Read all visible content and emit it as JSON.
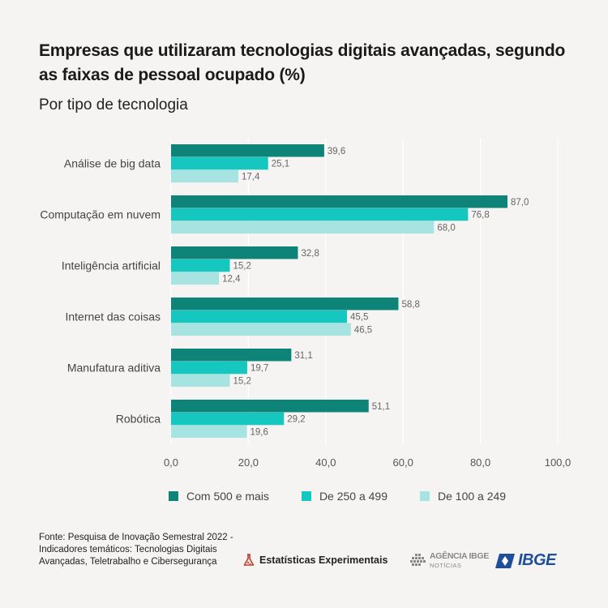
{
  "title": "Empresas que utilizaram tecnologias digitais avançadas, segundo as faixas de pessoal ocupado (%)",
  "subtitle": "Por tipo de tecnologia",
  "colors": {
    "series_1": "#0e8378",
    "series_2": "#16c7bf",
    "series_3": "#a7e3e1",
    "grid": "#ffffff",
    "background": "#f5f4f2"
  },
  "chart_data": {
    "type": "bar",
    "orientation": "horizontal",
    "categories": [
      "Análise de big data",
      "Computação em nuvem",
      "Inteligência artificial",
      "Internet das coisas",
      "Manufatura aditiva",
      "Robótica"
    ],
    "series": [
      {
        "name": "Com 500 e mais",
        "values": [
          39.6,
          87.0,
          32.8,
          58.8,
          31.1,
          51.1
        ]
      },
      {
        "name": "De 250 a 499",
        "values": [
          25.1,
          76.8,
          15.2,
          45.5,
          19.7,
          29.2
        ]
      },
      {
        "name": "De 100 a 249",
        "values": [
          17.4,
          68.0,
          12.4,
          46.5,
          15.2,
          19.6
        ]
      }
    ],
    "value_labels": [
      [
        "39,6",
        "87,0",
        "32,8",
        "58,8",
        "31,1",
        "51,1"
      ],
      [
        "25,1",
        "76,8",
        "15,2",
        "45,5",
        "19,7",
        "29,2"
      ],
      [
        "17,4",
        "68,0",
        "12,4",
        "46,5",
        "15,2",
        "19,6"
      ]
    ],
    "xlim": [
      0,
      100
    ],
    "xticks": [
      0,
      20,
      40,
      60,
      80,
      100
    ],
    "xtick_labels": [
      "0,0",
      "20,0",
      "40,0",
      "60,0",
      "80,0",
      "100,0"
    ],
    "grid": true,
    "legend_position": "bottom"
  },
  "legend": [
    {
      "label": "Com 500 e mais"
    },
    {
      "label": "De 250 a 499"
    },
    {
      "label": "De 100 a 249"
    }
  ],
  "source": "Fonte: Pesquisa de Inovação Semestral 2022 - Indicadores temáticos: Tecnologias Digitais Avançadas, Teletrabalho e Cibersegurança",
  "logos": {
    "estatisticas": "Estatísticas Experimentais",
    "agencia_top": "AGÊNCIA IBGE",
    "agencia_bottom": "NOTÍCIAS",
    "ibge": "IBGE"
  }
}
